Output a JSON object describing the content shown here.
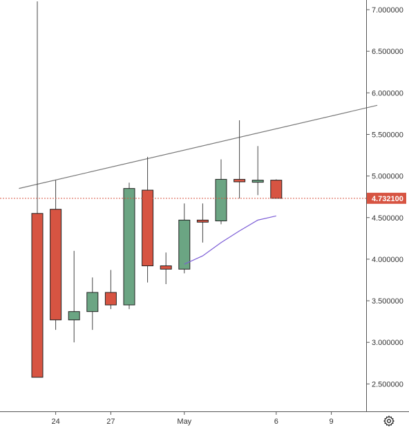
{
  "chart_data": {
    "type": "candlestick",
    "y_ticks": [
      "7.000000",
      "6.500000",
      "6.000000",
      "5.500000",
      "5.000000",
      "4.500000",
      "4.000000",
      "3.500000",
      "3.000000",
      "2.500000"
    ],
    "x_ticks": [
      "24",
      "27",
      "May",
      "6",
      "9"
    ],
    "last_price": {
      "value": 4.7321,
      "label": "4.732100"
    },
    "candles": [
      {
        "o": 4.55,
        "h": 7.1,
        "l": 2.58,
        "c": 2.58
      },
      {
        "o": 4.6,
        "h": 4.95,
        "l": 3.15,
        "c": 3.27
      },
      {
        "o": 3.27,
        "h": 4.1,
        "l": 3.0,
        "c": 3.37
      },
      {
        "o": 3.37,
        "h": 3.78,
        "l": 3.15,
        "c": 3.6
      },
      {
        "o": 3.6,
        "h": 3.87,
        "l": 3.4,
        "c": 3.45
      },
      {
        "o": 3.45,
        "h": 4.92,
        "l": 3.4,
        "c": 4.85
      },
      {
        "o": 4.83,
        "h": 5.23,
        "l": 3.72,
        "c": 3.92
      },
      {
        "o": 3.92,
        "h": 4.08,
        "l": 3.7,
        "c": 3.88
      },
      {
        "o": 3.88,
        "h": 4.67,
        "l": 3.83,
        "c": 4.47
      },
      {
        "o": 4.47,
        "h": 4.67,
        "l": 4.2,
        "c": 4.46
      },
      {
        "o": 4.46,
        "h": 5.2,
        "l": 4.42,
        "c": 4.96
      },
      {
        "o": 4.96,
        "h": 5.67,
        "l": 4.73,
        "c": 4.93
      },
      {
        "o": 4.93,
        "h": 5.36,
        "l": 4.77,
        "c": 4.95
      },
      {
        "o": 4.95,
        "h": 4.96,
        "l": 4.73,
        "c": 4.732
      }
    ],
    "moving_average": [
      {
        "i": 8,
        "v": 3.94
      },
      {
        "i": 9,
        "v": 4.04
      },
      {
        "i": 10,
        "v": 4.2
      },
      {
        "i": 11,
        "v": 4.34
      },
      {
        "i": 12,
        "v": 4.47
      },
      {
        "i": 13,
        "v": 4.52
      }
    ],
    "trend_line": {
      "from": {
        "i": -1,
        "v": 4.85
      },
      "to": {
        "i": 18.5,
        "v": 5.85
      }
    },
    "colors": {
      "up": "#6ba583",
      "down": "#d75442",
      "border": "#222222",
      "wick": "#444444",
      "ma": "#7b5cd6",
      "trend": "#787878",
      "last_price": "#d75442",
      "axis": "#555555"
    }
  },
  "icons": {
    "settings": "gear-icon"
  }
}
